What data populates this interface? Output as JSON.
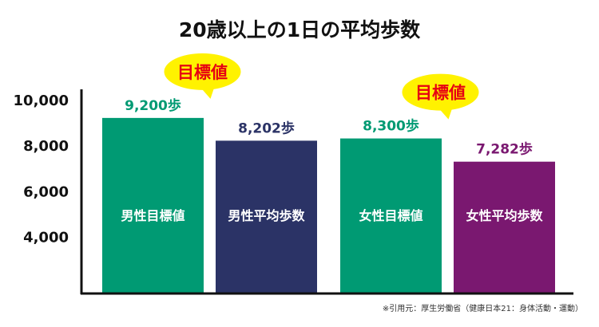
{
  "chart_data": {
    "type": "bar",
    "title": "20歳以上の1日の平均歩数",
    "categories": [
      "男性目標値",
      "男性平均歩数",
      "女性目標値",
      "女性平均歩数"
    ],
    "values": [
      9200,
      8202,
      8300,
      7282
    ],
    "value_labels": [
      "9,200歩",
      "8,202歩",
      "8,300歩",
      "7,282歩"
    ],
    "colors": [
      "#009A73",
      "#2B3366",
      "#009A73",
      "#7A1870"
    ],
    "label_colors": [
      "#009A73",
      "#2B3366",
      "#009A73",
      "#7A1870"
    ],
    "ylim": [
      1500,
      10000
    ],
    "yticks": [
      4000,
      6000,
      8000,
      10000
    ],
    "ytick_labels": [
      "4,000",
      "6,000",
      "8,000",
      "10,000"
    ],
    "grid": false,
    "annotations": [
      {
        "text": "目標値",
        "target": "男性目標値",
        "fill": "#FFF200",
        "color": "#E60012"
      },
      {
        "text": "目標値",
        "target": "女性目標値",
        "fill": "#FFF200",
        "color": "#E60012"
      }
    ],
    "source": "※引用元：厚生労働省（健康日本21：身体活動・運動）"
  }
}
